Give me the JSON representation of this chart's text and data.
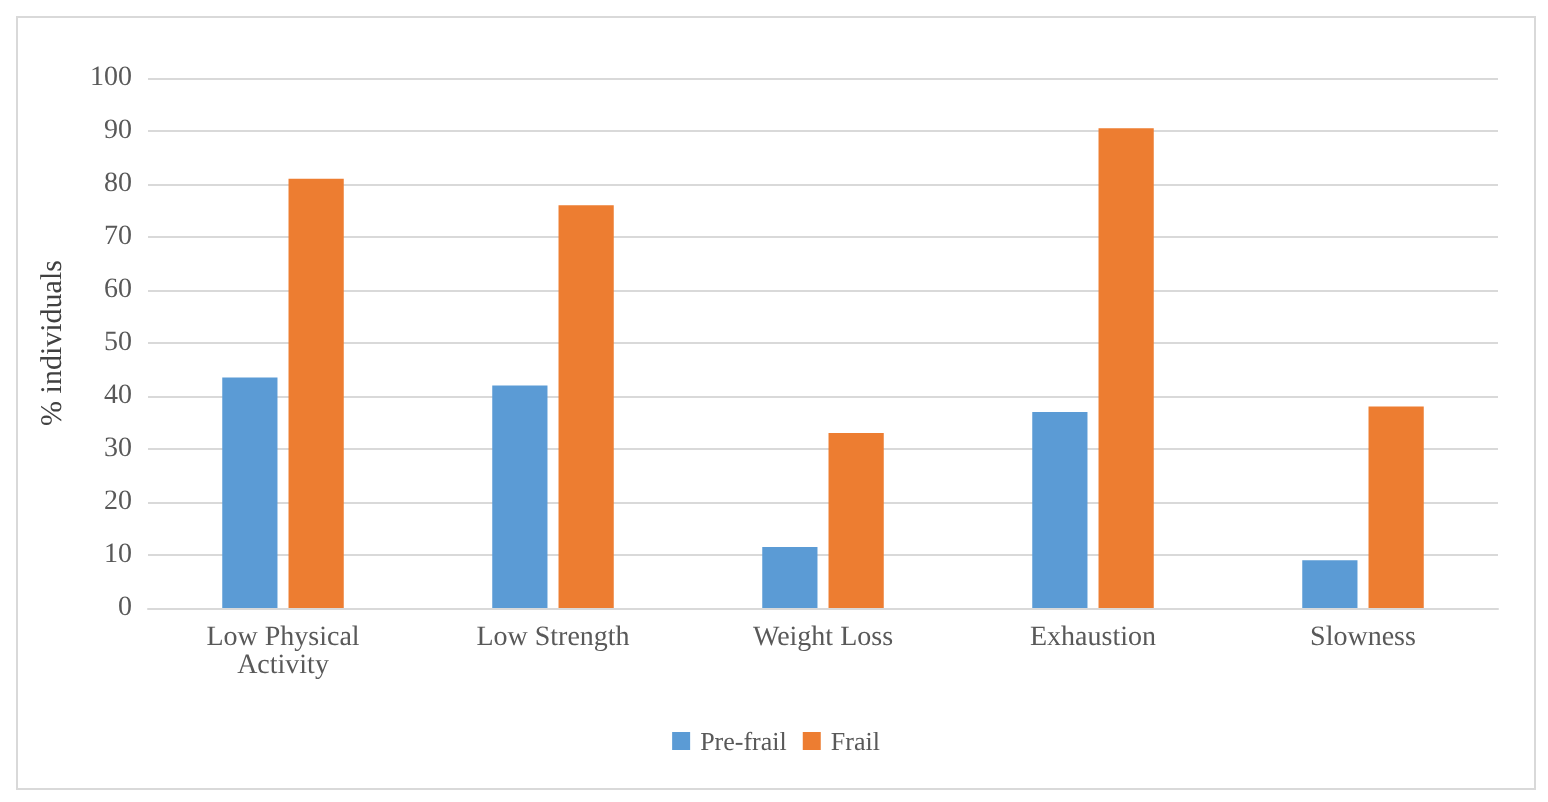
{
  "chart_data": {
    "type": "bar",
    "ylabel": "% individuals",
    "categories": [
      "Low Physical\nActivity",
      "Low Strength",
      "Weight Loss",
      "Exhaustion",
      "Slowness"
    ],
    "series": [
      {
        "name": "Pre-frail",
        "color": "#5b9bd5",
        "values": [
          43.5,
          42,
          11.5,
          37,
          9
        ]
      },
      {
        "name": "Frail",
        "color": "#ed7d31",
        "values": [
          81,
          76,
          33,
          90.5,
          38
        ]
      }
    ],
    "ylim": [
      0,
      100
    ],
    "yticks": [
      0,
      10,
      20,
      30,
      40,
      50,
      60,
      70,
      80,
      90,
      100
    ],
    "grid": "y",
    "legend": "bottom"
  }
}
